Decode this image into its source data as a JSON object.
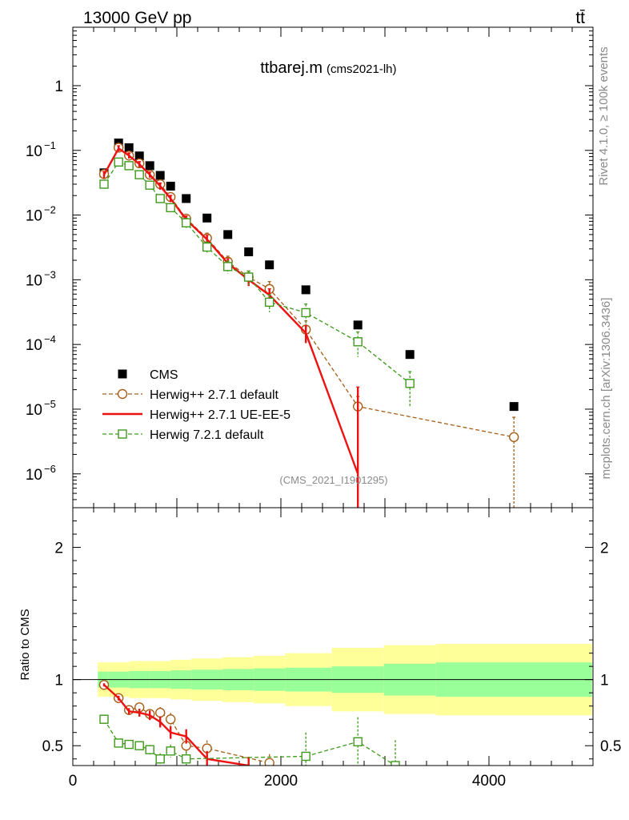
{
  "header": {
    "energy": "13000 GeV pp",
    "process": "tt̄"
  },
  "side_labels": {
    "rivet": "Rivet 4.1.0, ≥ 100k events",
    "site": "mcplots.cern.ch [arXiv:1306.3436]"
  },
  "chart_data": [
    {
      "type": "scatter",
      "panel": "main",
      "title": "ttbarej.m",
      "subtitle": "(cms2021-lh)",
      "watermark": "(CMS_2021_I1901295)",
      "yscale": "log",
      "xlim": [
        0,
        5000
      ],
      "ylim": [
        3e-07,
        8
      ],
      "ytick_labels": [
        {
          "value": 1,
          "mant": "1",
          "exp": ""
        },
        {
          "value": 0.1,
          "mant": "10",
          "exp": "−1"
        },
        {
          "value": 0.01,
          "mant": "10",
          "exp": "−2"
        },
        {
          "value": 0.001,
          "mant": "10",
          "exp": "−3"
        },
        {
          "value": 0.0001,
          "mant": "10",
          "exp": "−4"
        },
        {
          "value": 1e-05,
          "mant": "10",
          "exp": "−5"
        },
        {
          "value": 1e-06,
          "mant": "10",
          "exp": "−6"
        }
      ],
      "legend_position": "bottom-left",
      "series": [
        {
          "name": "CMS",
          "style": "square-filled",
          "color": "#000000",
          "x": [
            300,
            440,
            540,
            640,
            740,
            840,
            940,
            1090,
            1290,
            1490,
            1690,
            1890,
            2240,
            2740,
            3240,
            4240
          ],
          "y": [
            0.045,
            0.13,
            0.11,
            0.082,
            0.058,
            0.041,
            0.028,
            0.018,
            0.009,
            0.005,
            0.0027,
            0.0017,
            0.0007,
            0.0002,
            7e-05,
            1.1e-05
          ]
        },
        {
          "name": "Herwig++ 2.7.1 default",
          "style": "circle-open-dashed",
          "color": "#a65e17",
          "x": [
            300,
            440,
            540,
            640,
            740,
            840,
            940,
            1090,
            1290,
            1490,
            1690,
            1890,
            2240,
            2740,
            4240
          ],
          "y": [
            0.043,
            0.11,
            0.083,
            0.063,
            0.042,
            0.03,
            0.019,
            0.0088,
            0.0044,
            0.0019,
            0.0011,
            0.00072,
            0.00017,
            1.1e-05,
            3.7e-06
          ]
        },
        {
          "name": "Herwig++ 2.7.1 UE-EE-5",
          "style": "line-solid",
          "color": "#ee1111",
          "x": [
            300,
            440,
            540,
            640,
            740,
            840,
            940,
            1090,
            1290,
            1490,
            1690,
            1890,
            2240,
            2740
          ],
          "y": [
            0.042,
            0.107,
            0.083,
            0.061,
            0.042,
            0.028,
            0.018,
            0.0085,
            0.0042,
            0.0018,
            0.001,
            0.00058,
            0.00015,
            1e-06
          ]
        },
        {
          "name": "Herwig 7.2.1 default",
          "style": "square-open-dashed",
          "color": "#3f9a1c",
          "x": [
            300,
            440,
            540,
            640,
            740,
            840,
            940,
            1090,
            1290,
            1490,
            1690,
            1890,
            2240,
            2740,
            3240
          ],
          "y": [
            0.03,
            0.066,
            0.058,
            0.042,
            0.029,
            0.018,
            0.013,
            0.0076,
            0.0032,
            0.0016,
            0.0011,
            0.00045,
            0.00031,
            0.00011,
            2.5e-05
          ]
        }
      ]
    },
    {
      "type": "scatter",
      "panel": "ratio",
      "ylabel": "Ratio to CMS",
      "xlim": [
        0,
        5000
      ],
      "ylim": [
        0.35,
        2.3
      ],
      "xtick_labels": [
        "0",
        "2000",
        "4000"
      ],
      "ytick_labels": [
        "0.5",
        "1",
        "2"
      ],
      "reference": 1,
      "bands": {
        "edges": [
          240,
          340,
          540,
          740,
          940,
          1140,
          1440,
          1740,
          2040,
          2490,
          2990,
          3490,
          4990
        ],
        "inner": [
          0.06,
          0.06,
          0.065,
          0.065,
          0.07,
          0.075,
          0.08,
          0.085,
          0.09,
          0.1,
          0.12,
          0.13
        ],
        "outer": [
          0.13,
          0.13,
          0.14,
          0.14,
          0.15,
          0.16,
          0.17,
          0.18,
          0.2,
          0.24,
          0.26,
          0.27
        ]
      },
      "series": [
        {
          "name": "Herwig++ 2.7.1 default",
          "color": "#a65e17",
          "x": [
            300,
            440,
            540,
            640,
            740,
            840,
            940,
            1090,
            1290,
            1890
          ],
          "y": [
            0.96,
            0.86,
            0.77,
            0.79,
            0.74,
            0.75,
            0.7,
            0.5,
            0.48,
            0.37
          ]
        },
        {
          "name": "Herwig++ 2.7.1 UE-EE-5",
          "color": "#ee1111",
          "x": [
            300,
            440,
            540,
            640,
            740,
            840,
            940,
            1090,
            1290,
            1690
          ],
          "y": [
            0.96,
            0.86,
            0.76,
            0.75,
            0.73,
            0.68,
            0.6,
            0.57,
            0.4,
            0.35
          ]
        },
        {
          "name": "Herwig 7.2.1 default",
          "color": "#3f9a1c",
          "x": [
            300,
            440,
            540,
            640,
            740,
            840,
            940,
            1090,
            2240,
            2740,
            3100
          ],
          "y": [
            0.7,
            0.52,
            0.51,
            0.5,
            0.47,
            0.4,
            0.46,
            0.4,
            0.42,
            0.53,
            0.35
          ]
        }
      ]
    }
  ]
}
